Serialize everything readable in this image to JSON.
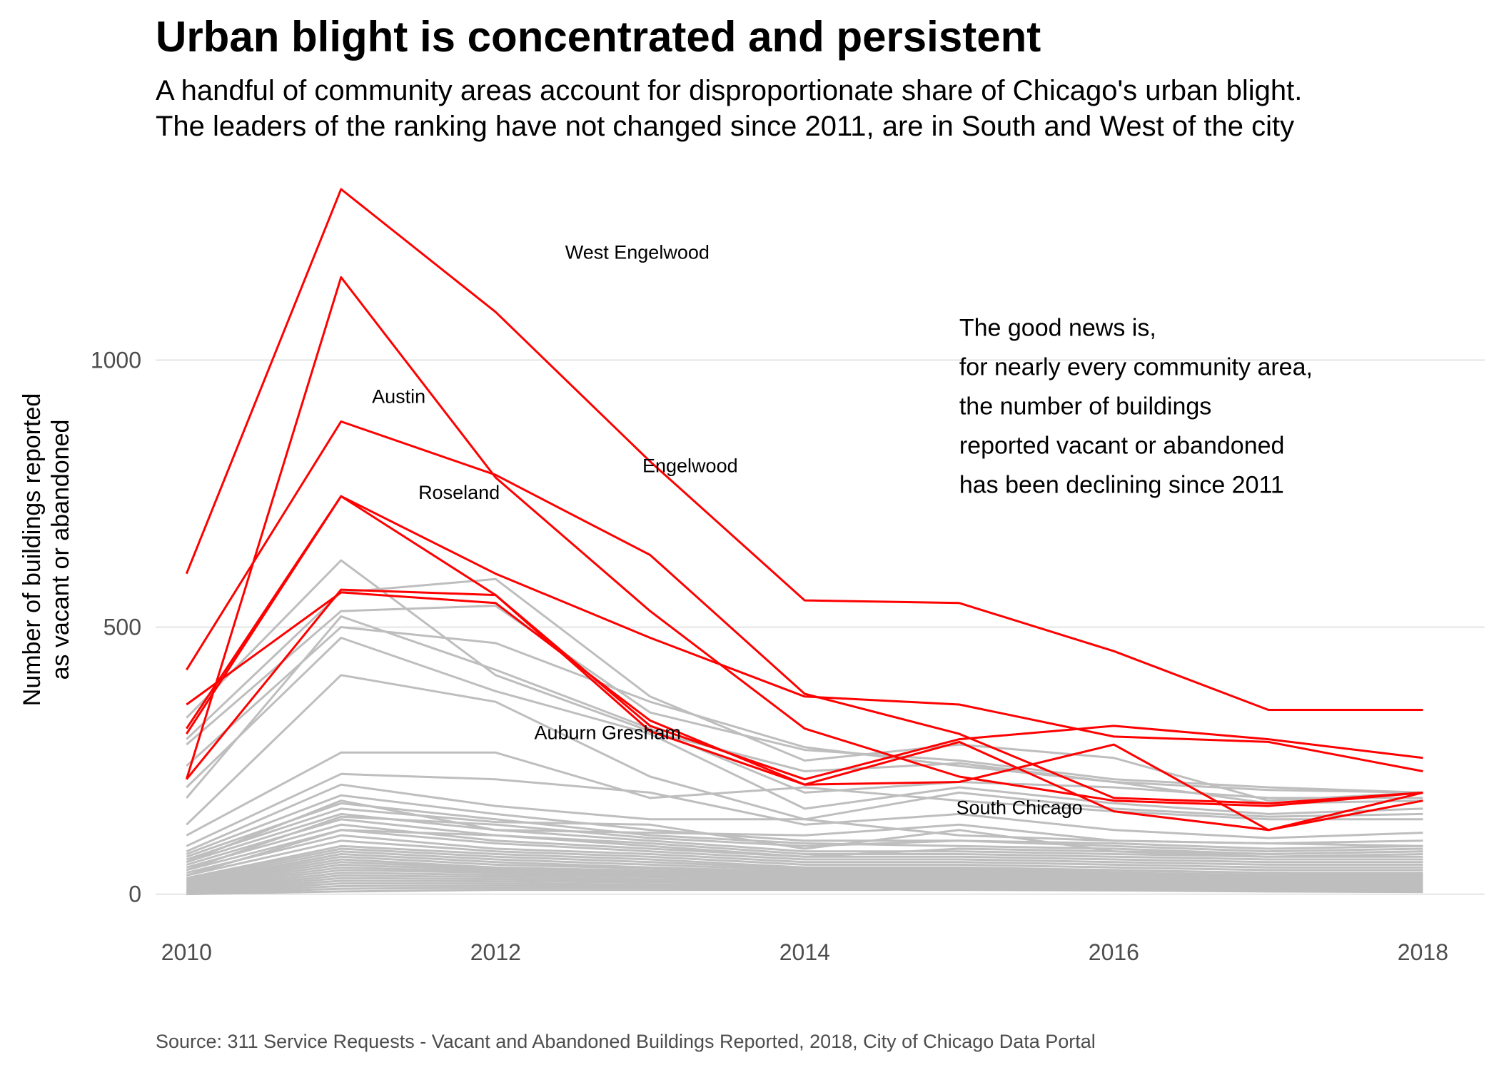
{
  "chart_data": {
    "type": "line",
    "title": "Urban blight is concentrated and persistent",
    "subtitle_lines": [
      "A handful of community areas account for disproportionate share of Chicago's urban blight.",
      "The leaders of the ranking have not changed since 2011, are in South and West of the city"
    ],
    "ylabel_lines": [
      "Number of buildings reported",
      "as vacant or abandoned"
    ],
    "xlabel": "",
    "caption": "Source: 311 Service Requests - Vacant and Abandoned Buildings Reported, 2018, City of Chicago Data Portal",
    "x": [
      2010,
      2011,
      2012,
      2013,
      2014,
      2015,
      2016,
      2017,
      2018
    ],
    "xlim": [
      2009.8,
      2018.4
    ],
    "ylim": [
      -50,
      1320
    ],
    "x_ticks": [
      2010,
      2012,
      2014,
      2016,
      2018
    ],
    "y_ticks": [
      0,
      500,
      1000
    ],
    "grid": true,
    "legend": "none",
    "highlight_color": "#ff0000",
    "background_color": "#bebebe",
    "series_labels": [
      {
        "text": "West Engelwood",
        "x": 2012.45,
        "y": 1190
      },
      {
        "text": "Austin",
        "x": 2011.2,
        "y": 920
      },
      {
        "text": "Engelwood",
        "x": 2012.95,
        "y": 790
      },
      {
        "text": "Roseland",
        "x": 2011.5,
        "y": 740
      },
      {
        "text": "Auburn Gresham",
        "x": 2012.25,
        "y": 290
      },
      {
        "text": "South Chicago",
        "x": 2014.98,
        "y": 150
      }
    ],
    "annotation_lines": [
      "The good news is,",
      "for nearly every community area,",
      "the number of buildings",
      "reported vacant or abandoned",
      "has been declining since 2011"
    ],
    "annotation_position": {
      "x": 2015.0,
      "y": 1045
    },
    "highlight_series": [
      {
        "values": [
          600,
          1320,
          1090,
          810,
          550,
          545,
          455,
          345,
          345
        ]
      },
      {
        "values": [
          215,
          1155,
          780,
          530,
          310,
          220,
          175,
          165,
          190
        ]
      },
      {
        "values": [
          420,
          885,
          785,
          635,
          375,
          300,
          180,
          170,
          190
        ]
      },
      {
        "values": [
          300,
          745,
          600,
          480,
          370,
          355,
          295,
          285,
          230
        ]
      },
      {
        "values": [
          310,
          745,
          560,
          315,
          215,
          290,
          315,
          290,
          255
        ]
      },
      {
        "values": [
          215,
          570,
          560,
          305,
          205,
          210,
          280,
          120,
          190
        ]
      },
      {
        "values": [
          355,
          565,
          545,
          325,
          205,
          285,
          155,
          120,
          175
        ]
      }
    ],
    "background_series": [
      {
        "values": [
          330,
          625,
          410,
          305,
          230,
          245,
          210,
          170,
          175
        ]
      },
      {
        "values": [
          290,
          565,
          590,
          370,
          250,
          280,
          255,
          175,
          190
        ]
      },
      {
        "values": [
          280,
          530,
          540,
          340,
          270,
          250,
          215,
          200,
          190
        ]
      },
      {
        "values": [
          240,
          500,
          470,
          360,
          275,
          240,
          210,
          195,
          190
        ]
      },
      {
        "values": [
          200,
          480,
          380,
          300,
          160,
          200,
          170,
          150,
          160
        ]
      },
      {
        "values": [
          180,
          520,
          420,
          310,
          190,
          210,
          200,
          180,
          180
        ]
      },
      {
        "values": [
          130,
          410,
          360,
          220,
          140,
          190,
          160,
          145,
          150
        ]
      },
      {
        "values": [
          110,
          265,
          265,
          180,
          200,
          175,
          155,
          140,
          140
        ]
      },
      {
        "values": [
          90,
          225,
          215,
          190,
          130,
          150,
          120,
          105,
          115
        ]
      },
      {
        "values": [
          80,
          205,
          165,
          140,
          140,
          110,
          100,
          95,
          90
        ]
      },
      {
        "values": [
          75,
          185,
          150,
          120,
          100,
          100,
          90,
          80,
          85
        ]
      },
      {
        "values": [
          70,
          170,
          140,
          110,
          95,
          90,
          85,
          75,
          80
        ]
      },
      {
        "values": [
          65,
          160,
          135,
          130,
          85,
          120,
          80,
          70,
          75
        ]
      },
      {
        "values": [
          60,
          150,
          120,
          100,
          80,
          80,
          75,
          70,
          70
        ]
      },
      {
        "values": [
          55,
          140,
          110,
          95,
          75,
          75,
          70,
          65,
          65
        ]
      },
      {
        "values": [
          50,
          130,
          100,
          85,
          70,
          70,
          65,
          60,
          60
        ]
      },
      {
        "values": [
          45,
          120,
          95,
          80,
          65,
          65,
          60,
          55,
          55
        ]
      },
      {
        "values": [
          40,
          110,
          85,
          75,
          60,
          60,
          55,
          50,
          50
        ]
      },
      {
        "values": [
          35,
          100,
          80,
          70,
          55,
          55,
          50,
          45,
          45
        ]
      },
      {
        "values": [
          30,
          90,
          75,
          65,
          50,
          50,
          45,
          40,
          40
        ]
      },
      {
        "values": [
          28,
          85,
          70,
          60,
          48,
          48,
          44,
          40,
          38
        ]
      },
      {
        "values": [
          25,
          80,
          65,
          55,
          45,
          45,
          40,
          36,
          35
        ]
      },
      {
        "values": [
          22,
          75,
          60,
          50,
          42,
          42,
          38,
          34,
          33
        ]
      },
      {
        "values": [
          20,
          70,
          55,
          48,
          40,
          40,
          36,
          32,
          30
        ]
      },
      {
        "values": [
          18,
          65,
          50,
          44,
          38,
          38,
          34,
          30,
          28
        ]
      },
      {
        "values": [
          16,
          60,
          48,
          42,
          36,
          36,
          32,
          28,
          26
        ]
      },
      {
        "values": [
          14,
          55,
          45,
          40,
          34,
          34,
          30,
          26,
          24
        ]
      },
      {
        "values": [
          12,
          50,
          42,
          38,
          32,
          32,
          28,
          24,
          22
        ]
      },
      {
        "values": [
          10,
          45,
          40,
          35,
          30,
          30,
          26,
          22,
          20
        ]
      },
      {
        "values": [
          8,
          40,
          36,
          32,
          28,
          28,
          24,
          20,
          18
        ]
      },
      {
        "values": [
          6,
          35,
          32,
          28,
          25,
          25,
          22,
          18,
          16
        ]
      },
      {
        "values": [
          5,
          30,
          28,
          25,
          22,
          22,
          20,
          16,
          14
        ]
      },
      {
        "values": [
          4,
          25,
          24,
          22,
          20,
          20,
          18,
          14,
          12
        ]
      },
      {
        "values": [
          3,
          20,
          20,
          18,
          17,
          17,
          15,
          12,
          10
        ]
      },
      {
        "values": [
          2,
          15,
          16,
          15,
          14,
          14,
          12,
          10,
          8
        ]
      },
      {
        "values": [
          1,
          10,
          12,
          12,
          11,
          11,
          10,
          8,
          6
        ]
      },
      {
        "values": [
          0,
          5,
          8,
          8,
          8,
          8,
          7,
          5,
          4
        ]
      },
      {
        "values": [
          60,
          175,
          120,
          115,
          110,
          130,
          100,
          95,
          100
        ]
      },
      {
        "values": [
          45,
          145,
          130,
          105,
          90,
          100,
          95,
          85,
          90
        ]
      },
      {
        "values": [
          35,
          120,
          110,
          90,
          70,
          85,
          80,
          75,
          80
        ]
      }
    ]
  }
}
